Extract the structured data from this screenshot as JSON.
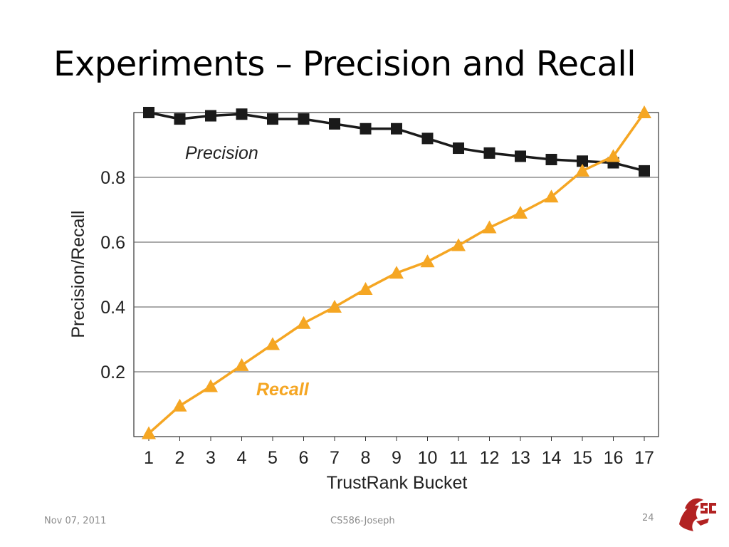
{
  "slide": {
    "title": "Experiments – Precision and Recall",
    "date": "Nov 07, 2011",
    "course": "CS586-Joseph",
    "page_number": "24"
  },
  "colors": {
    "precision": "#1a1a1a",
    "recall": "#f5a623",
    "logo": "#b22222"
  },
  "chart_data": {
    "type": "line",
    "xlabel": "TrustRank Bucket",
    "ylabel": "Precision/Recall",
    "x": [
      1,
      2,
      3,
      4,
      5,
      6,
      7,
      8,
      9,
      10,
      11,
      12,
      13,
      14,
      15,
      16,
      17
    ],
    "ylim": [
      0,
      1.0
    ],
    "yticks": [
      0.2,
      0.4,
      0.6,
      0.8
    ],
    "grid": "horizontal",
    "series": [
      {
        "name": "Precision",
        "marker": "square",
        "values": [
          1.0,
          0.98,
          0.99,
          0.995,
          0.98,
          0.98,
          0.965,
          0.95,
          0.95,
          0.92,
          0.89,
          0.875,
          0.865,
          0.855,
          0.85,
          0.845,
          0.82
        ]
      },
      {
        "name": "Recall",
        "marker": "triangle",
        "values": [
          0.01,
          0.095,
          0.155,
          0.22,
          0.285,
          0.35,
          0.4,
          0.455,
          0.505,
          0.54,
          0.59,
          0.645,
          0.69,
          0.74,
          0.82,
          0.865,
          1.0
        ]
      }
    ]
  }
}
